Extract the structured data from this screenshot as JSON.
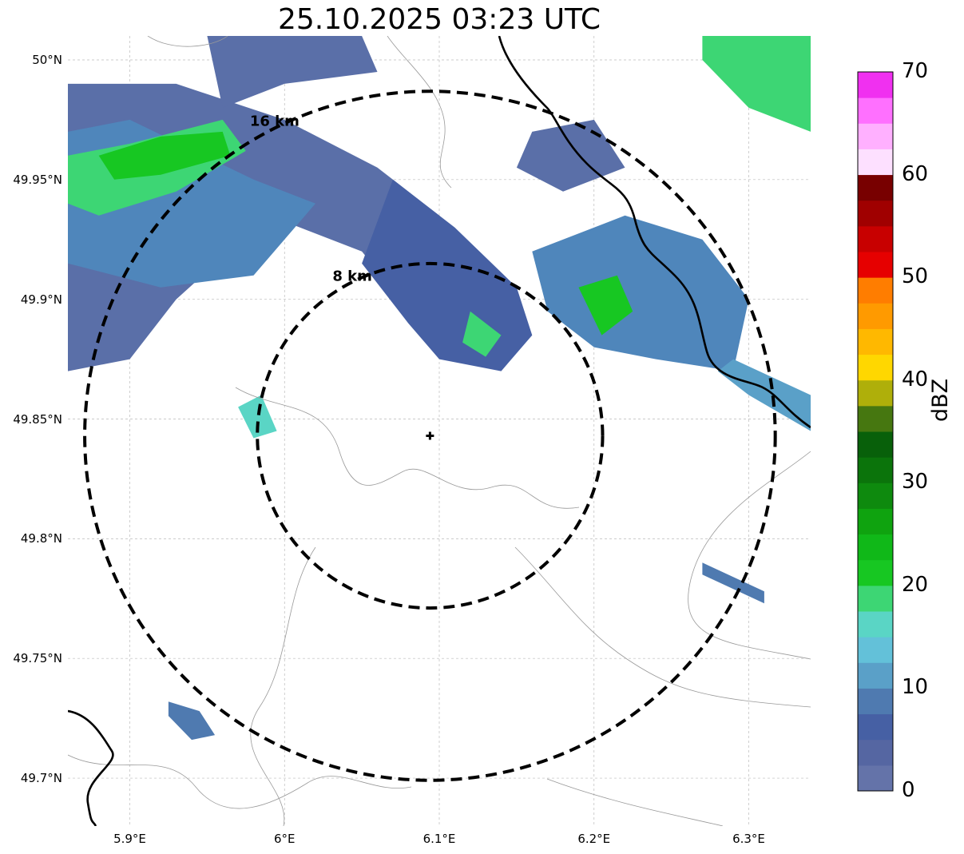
{
  "title": "25.10.2025 03:23 UTC",
  "map": {
    "lon_range": [
      5.86,
      6.34
    ],
    "lat_range": [
      49.68,
      50.01
    ],
    "radar_site": {
      "lon": 6.094,
      "lat": 49.843
    },
    "rings": [
      {
        "radius_km": 8,
        "label": "8 km"
      },
      {
        "radius_km": 16,
        "label": "16 km"
      }
    ],
    "lat_ticks": [
      {
        "value": 50.0,
        "label": "50°N"
      },
      {
        "value": 49.95,
        "label": "49.95°N"
      },
      {
        "value": 49.9,
        "label": "49.9°N"
      },
      {
        "value": 49.85,
        "label": "49.85°N"
      },
      {
        "value": 49.8,
        "label": "49.8°N"
      },
      {
        "value": 49.75,
        "label": "49.75°N"
      },
      {
        "value": 49.7,
        "label": "49.7°N"
      }
    ],
    "lon_ticks": [
      {
        "value": 5.9,
        "label": "5.9°E"
      },
      {
        "value": 6.0,
        "label": "6°E"
      },
      {
        "value": 6.1,
        "label": "6.1°E"
      },
      {
        "value": 6.2,
        "label": "6.2°E"
      },
      {
        "value": 6.3,
        "label": "6.3°E"
      }
    ]
  },
  "colorbar": {
    "label": "dBZ",
    "min": 0,
    "max": 70,
    "ticks": [
      "0",
      "10",
      "20",
      "30",
      "40",
      "50",
      "60",
      "70"
    ],
    "colors": [
      "#6473a9",
      "#5566a2",
      "#4660a4",
      "#4f7ab0",
      "#5aa0c8",
      "#63c1d9",
      "#5ad5c5",
      "#3dd674",
      "#17c722",
      "#10b818",
      "#0fa30f",
      "#0e8a0e",
      "#0b740b",
      "#08600a",
      "#467710",
      "#afaf0a",
      "#ffd700",
      "#ffb800",
      "#ff9a00",
      "#ff7d00",
      "#e60000",
      "#c80000",
      "#a00000",
      "#780000",
      "#fde0ff",
      "#ffb0ff",
      "#ff70ff",
      "#f030f0"
    ]
  },
  "echoes": [
    {
      "name": "nw-band",
      "color": "#5a6fa8",
      "points": [
        [
          5.86,
          49.99
        ],
        [
          5.93,
          49.99
        ],
        [
          6.0,
          49.975
        ],
        [
          6.06,
          49.955
        ],
        [
          6.1,
          49.935
        ],
        [
          6.12,
          49.915
        ],
        [
          6.14,
          49.895
        ],
        [
          6.13,
          49.875
        ],
        [
          6.1,
          49.88
        ],
        [
          6.05,
          49.92
        ],
        [
          5.99,
          49.935
        ],
        [
          5.93,
          49.9
        ],
        [
          5.9,
          49.875
        ],
        [
          5.86,
          49.87
        ]
      ]
    },
    {
      "name": "nw-band-light",
      "color": "#4f86bb",
      "points": [
        [
          5.86,
          49.97
        ],
        [
          5.9,
          49.975
        ],
        [
          5.98,
          49.95
        ],
        [
          6.02,
          49.94
        ],
        [
          5.98,
          49.91
        ],
        [
          5.92,
          49.905
        ],
        [
          5.86,
          49.915
        ]
      ]
    },
    {
      "name": "nw-core",
      "color": "#3dd674",
      "points": [
        [
          5.86,
          49.96
        ],
        [
          5.9,
          49.965
        ],
        [
          5.96,
          49.975
        ],
        [
          5.975,
          49.962
        ],
        [
          5.93,
          49.945
        ],
        [
          5.88,
          49.935
        ],
        [
          5.86,
          49.94
        ]
      ]
    },
    {
      "name": "nw-core-strong",
      "color": "#17c722",
      "points": [
        [
          5.88,
          49.96
        ],
        [
          5.92,
          49.968
        ],
        [
          5.96,
          49.97
        ],
        [
          5.965,
          49.96
        ],
        [
          5.92,
          49.952
        ],
        [
          5.89,
          49.95
        ]
      ]
    },
    {
      "name": "top-north",
      "color": "#5a6fa8",
      "points": [
        [
          5.95,
          50.01
        ],
        [
          6.05,
          50.01
        ],
        [
          6.06,
          49.995
        ],
        [
          6.0,
          49.99
        ],
        [
          5.96,
          49.98
        ]
      ]
    },
    {
      "name": "center-north",
      "color": "#4660a4",
      "points": [
        [
          6.07,
          49.95
        ],
        [
          6.11,
          49.93
        ],
        [
          6.15,
          49.905
        ],
        [
          6.16,
          49.885
        ],
        [
          6.14,
          49.87
        ],
        [
          6.1,
          49.875
        ],
        [
          6.08,
          49.89
        ],
        [
          6.05,
          49.915
        ]
      ]
    },
    {
      "name": "center-core",
      "color": "#3dd674",
      "points": [
        [
          6.12,
          49.895
        ],
        [
          6.14,
          49.885
        ],
        [
          6.13,
          49.876
        ],
        [
          6.115,
          49.882
        ]
      ]
    },
    {
      "name": "ne-cell",
      "color": "#4f86bb",
      "points": [
        [
          6.16,
          49.92
        ],
        [
          6.22,
          49.935
        ],
        [
          6.27,
          49.925
        ],
        [
          6.3,
          49.9
        ],
        [
          6.29,
          49.87
        ],
        [
          6.24,
          49.875
        ],
        [
          6.2,
          49.88
        ],
        [
          6.17,
          49.895
        ]
      ]
    },
    {
      "name": "ne-cell-core",
      "color": "#17c722",
      "points": [
        [
          6.19,
          49.905
        ],
        [
          6.215,
          49.91
        ],
        [
          6.225,
          49.895
        ],
        [
          6.205,
          49.885
        ]
      ]
    },
    {
      "name": "ne-north",
      "color": "#5a6fa8",
      "points": [
        [
          6.16,
          49.97
        ],
        [
          6.2,
          49.975
        ],
        [
          6.22,
          49.955
        ],
        [
          6.18,
          49.945
        ],
        [
          6.15,
          49.955
        ]
      ]
    },
    {
      "name": "east-band",
      "color": "#5aa0c8",
      "points": [
        [
          6.29,
          49.875
        ],
        [
          6.34,
          49.86
        ],
        [
          6.34,
          49.845
        ],
        [
          6.3,
          49.86
        ],
        [
          6.28,
          49.87
        ]
      ]
    },
    {
      "name": "top-right",
      "color": "#3dd674",
      "points": [
        [
          6.27,
          50.01
        ],
        [
          6.34,
          50.01
        ],
        [
          6.34,
          49.97
        ],
        [
          6.3,
          49.98
        ],
        [
          6.27,
          50.0
        ]
      ]
    },
    {
      "name": "west-cell",
      "color": "#5ad5c5",
      "points": [
        [
          5.97,
          49.855
        ],
        [
          5.985,
          49.86
        ],
        [
          5.995,
          49.845
        ],
        [
          5.98,
          49.842
        ]
      ]
    },
    {
      "name": "sw-cell",
      "color": "#4f7ab0",
      "points": [
        [
          5.925,
          49.732
        ],
        [
          5.945,
          49.728
        ],
        [
          5.955,
          49.718
        ],
        [
          5.94,
          49.716
        ],
        [
          5.925,
          49.726
        ]
      ]
    },
    {
      "name": "east-streak",
      "color": "#4f7ab0",
      "points": [
        [
          6.27,
          49.79
        ],
        [
          6.31,
          49.778
        ],
        [
          6.31,
          49.773
        ],
        [
          6.27,
          49.785
        ]
      ]
    }
  ]
}
